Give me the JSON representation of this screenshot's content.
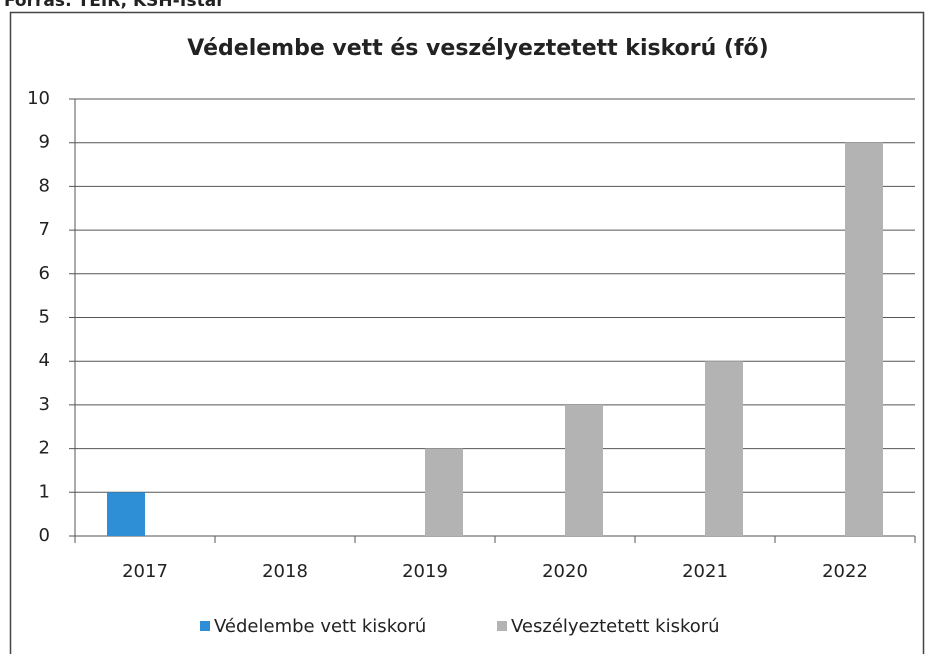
{
  "source": "Forrás: TEIR, KSH-Tstar",
  "chart_data": {
    "type": "bar",
    "title": "Védelembe vett és veszélyeztetett kiskorú (fő)",
    "categories": [
      "2017",
      "2018",
      "2019",
      "2020",
      "2021",
      "2022"
    ],
    "series": [
      {
        "name": "Védelembe vett kiskorú",
        "color": "#2f8fd6",
        "values": [
          1,
          0,
          0,
          0,
          0,
          0
        ]
      },
      {
        "name": "Veszélyeztetett kiskorú",
        "color": "#b3b3b3",
        "values": [
          0,
          0,
          2,
          3,
          4,
          9
        ]
      }
    ],
    "ylim": [
      0,
      10
    ],
    "yticks": [
      0,
      1,
      2,
      3,
      4,
      5,
      6,
      7,
      8,
      9,
      10
    ],
    "grid": true,
    "legend": "bottom"
  }
}
